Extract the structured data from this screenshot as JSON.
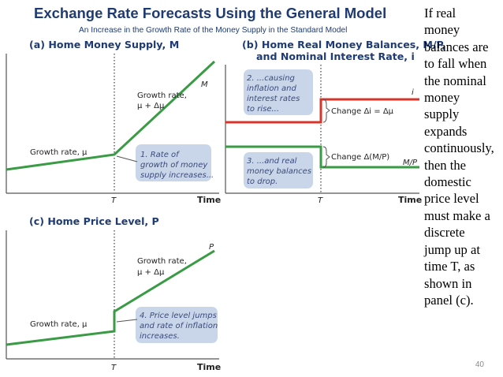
{
  "slide": {
    "title": "Exchange Rate Forecasts Using the General Model",
    "subtitle": "An Increase in the Growth Rate of the Money Supply in the Standard Model",
    "side_text_lines": [
      "If real",
      "money",
      "balances are",
      "to fall when",
      "the nominal",
      "money",
      "supply",
      "expands",
      "continuously,",
      "then the",
      "domestic",
      "price level",
      "must make a",
      "discrete",
      "jump up at",
      "time T, as",
      "shown in",
      "panel (c)."
    ],
    "page_number": "40"
  },
  "panel_a": {
    "title": "(a) Home Money Supply, M",
    "curve_label": "M",
    "growth_before": "Growth rate, μ",
    "growth_after_line1": "Growth rate,",
    "growth_after_line2": "μ + Δμ",
    "callout_lines": [
      "1. Rate of",
      "growth of money",
      "supply increases..."
    ],
    "t_label": "T",
    "time_label": "Time"
  },
  "panel_b": {
    "title_line1": "(b) Home Real Money Balances, M/P,",
    "title_line2": "and Nominal Interest Rate, i",
    "i_label": "i",
    "mp_label": "M/P",
    "change_i": "Change Δi = Δμ",
    "change_mp": "Change Δ(M/P)",
    "callout_top_lines": [
      "2. ...causing",
      "inflation and",
      "interest rates",
      "to rise..."
    ],
    "callout_bottom_lines": [
      "3. ...and real",
      "money balances",
      "to drop."
    ],
    "t_label": "T",
    "time_label": "Time"
  },
  "panel_c": {
    "title": "(c) Home Price Level, P",
    "curve_label": "P",
    "growth_before": "Growth rate, μ",
    "growth_after_line1": "Growth rate,",
    "growth_after_line2": "μ + Δμ",
    "callout_lines": [
      "4. Price level jumps",
      "and rate of inflation",
      "increases."
    ],
    "t_label": "T",
    "time_label": "Time"
  },
  "colors": {
    "title": "#1f3b73",
    "green": "#3a9b45",
    "red": "#d9342b",
    "callout_fill": "#c9d6ea",
    "callout_text": "#3b4a7a",
    "axis": "#555555",
    "dotted": "#8a8a8a"
  }
}
